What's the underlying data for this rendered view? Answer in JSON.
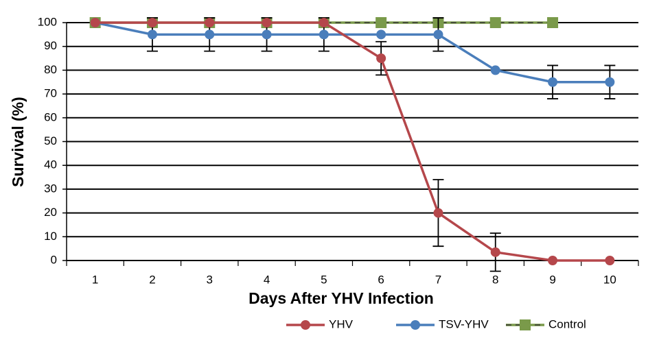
{
  "chart_data": {
    "type": "line",
    "xlabel": "Days After YHV Infection",
    "ylabel": "Survival (%)",
    "categories": [
      1,
      2,
      3,
      4,
      5,
      6,
      7,
      8,
      9,
      10
    ],
    "ylim": [
      0,
      100
    ],
    "yticks": [
      0,
      10,
      20,
      30,
      40,
      50,
      60,
      70,
      80,
      90,
      100
    ],
    "grid": true,
    "legend": "bottom",
    "series": [
      {
        "name": "YHV",
        "color": "#b5474b",
        "marker": "circle",
        "values": [
          100,
          100,
          100,
          100,
          100,
          85,
          20,
          3.5,
          0,
          0
        ],
        "errors": [
          null,
          null,
          null,
          null,
          null,
          7,
          14,
          8,
          null,
          null
        ]
      },
      {
        "name": "TSV-YHV",
        "color": "#4a7ebb",
        "marker": "circle",
        "values": [
          100,
          95,
          95,
          95,
          95,
          95,
          95,
          80,
          75,
          75
        ],
        "errors": [
          null,
          7,
          7,
          7,
          7,
          null,
          7,
          null,
          7,
          7
        ]
      },
      {
        "name": "Control",
        "color": "#7a9a4a",
        "marker": "square",
        "values": [
          100,
          100,
          100,
          100,
          100,
          100,
          100,
          100,
          100,
          null
        ]
      }
    ]
  }
}
